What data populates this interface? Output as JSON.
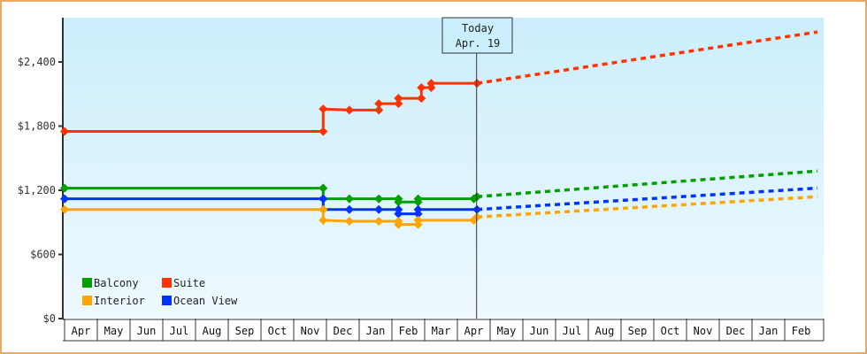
{
  "chart_data": {
    "type": "line",
    "title": "",
    "xlabel": "",
    "ylabel": "",
    "ylim": [
      0,
      2800
    ],
    "yticks": [
      {
        "value": 0,
        "label": "$0"
      },
      {
        "value": 600,
        "label": "$600"
      },
      {
        "value": 1200,
        "label": "$1,200"
      },
      {
        "value": 1800,
        "label": "$1,800"
      },
      {
        "value": 2400,
        "label": "$2,400"
      }
    ],
    "categories": [
      "Apr",
      "May",
      "Jun",
      "Jul",
      "Aug",
      "Sep",
      "Oct",
      "Nov",
      "Dec",
      "Jan",
      "Feb",
      "Mar",
      "Apr",
      "May",
      "Jun",
      "Jul",
      "Aug",
      "Sep",
      "Oct",
      "Nov",
      "Dec",
      "Jan",
      "Feb"
    ],
    "grid": false,
    "legend_position": "lower-left inside",
    "annotation": {
      "line1": "Today",
      "line2": "Apr. 19",
      "month_index": 12.6
    },
    "series": [
      {
        "name": "Balcony",
        "color": "#00a000",
        "history": [
          [
            0,
            1220
          ],
          [
            7.9,
            1220
          ],
          [
            7.9,
            1120
          ],
          [
            8.7,
            1120
          ],
          [
            9.6,
            1120
          ],
          [
            10.2,
            1120
          ],
          [
            10.2,
            1090
          ],
          [
            10.8,
            1090
          ],
          [
            10.8,
            1120
          ],
          [
            12.5,
            1120
          ],
          [
            12.6,
            1140
          ]
        ],
        "projection": [
          [
            12.6,
            1140
          ],
          [
            23,
            1380
          ]
        ]
      },
      {
        "name": "Suite",
        "color": "#ff3300",
        "history": [
          [
            0,
            1750
          ],
          [
            7.9,
            1750
          ],
          [
            7.9,
            1960
          ],
          [
            8.7,
            1950
          ],
          [
            9.6,
            1950
          ],
          [
            9.6,
            2010
          ],
          [
            10.2,
            2010
          ],
          [
            10.2,
            2060
          ],
          [
            10.9,
            2060
          ],
          [
            10.9,
            2160
          ],
          [
            11.2,
            2160
          ],
          [
            11.2,
            2200
          ],
          [
            12.6,
            2200
          ]
        ],
        "projection": [
          [
            12.6,
            2200
          ],
          [
            23,
            2680
          ]
        ]
      },
      {
        "name": "Interior",
        "color": "#ffa500",
        "history": [
          [
            0,
            1020
          ],
          [
            7.9,
            1020
          ],
          [
            7.9,
            920
          ],
          [
            8.7,
            910
          ],
          [
            9.6,
            910
          ],
          [
            10.2,
            910
          ],
          [
            10.2,
            880
          ],
          [
            10.8,
            880
          ],
          [
            10.8,
            920
          ],
          [
            12.5,
            920
          ],
          [
            12.6,
            950
          ]
        ],
        "projection": [
          [
            12.6,
            950
          ],
          [
            23,
            1140
          ]
        ]
      },
      {
        "name": "Ocean View",
        "color": "#0033ff",
        "history": [
          [
            0,
            1120
          ],
          [
            7.9,
            1120
          ],
          [
            7.9,
            1020
          ],
          [
            8.7,
            1020
          ],
          [
            9.6,
            1020
          ],
          [
            10.2,
            1020
          ],
          [
            10.2,
            980
          ],
          [
            10.8,
            980
          ],
          [
            10.8,
            1020
          ],
          [
            12.6,
            1020
          ]
        ],
        "projection": [
          [
            12.6,
            1020
          ],
          [
            23,
            1220
          ]
        ]
      }
    ]
  },
  "legend": {
    "items": [
      {
        "label": "Balcony",
        "color": "#00a000"
      },
      {
        "label": "Suite",
        "color": "#ff3300"
      },
      {
        "label": "Interior",
        "color": "#ffa500"
      },
      {
        "label": "Ocean View",
        "color": "#0033ff"
      }
    ]
  },
  "colors": {
    "border": "#e8a866",
    "plot_top": "#cbeefc",
    "plot_bottom": "#eef9fe",
    "axis": "#333333"
  }
}
